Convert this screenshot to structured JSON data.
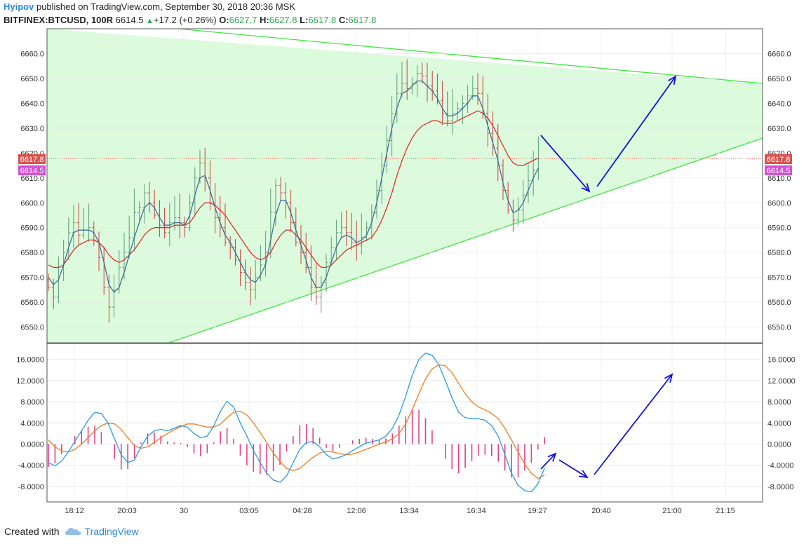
{
  "header": {
    "author": "Hyipov",
    "published_text": "published on TradingView.com, September 30, 2018 20:36 MSK",
    "symbol": "BITFINEX:BTCUSD, 100R",
    "last": "6614.5",
    "change_arrow": "▲",
    "change": "+17.2 (+0.26%)",
    "o_label": "O:",
    "o_value": "6627.7",
    "h_label": "H:",
    "h_value": "6627.8",
    "l_label": "L:",
    "l_value": "6617.8",
    "c_label": "C:",
    "c_value": "6617.8"
  },
  "footer": {
    "created_with": "Created with",
    "brand": "TradingView",
    "logo_icon": "tradingview-cloud-icon"
  },
  "colors": {
    "triangle_fill": "#dcfadc",
    "triangle_line": "#3ee63e",
    "candle_up": "#5c9e77",
    "candle_down": "#c9413d",
    "ma_fast": "#3d6f9c",
    "ma_slow": "#e03030",
    "arrow": "#1212d9",
    "price_line": "#d9534f",
    "macd_line": "#2b9ae9",
    "signal_line": "#f07b1d",
    "histogram": "#e23f88",
    "last_price_label": "#d9534f",
    "close_label": "#d64fd6"
  },
  "chart_data": [
    {
      "type": "candlestick",
      "title": "BITFINEX:BTCUSD, 100R",
      "xlabel": "",
      "ylabel": "",
      "ylim": [
        6545,
        6665
      ],
      "yticks": [
        6550.0,
        6560.0,
        6570.0,
        6580.0,
        6590.0,
        6600.0,
        6610.0,
        6620.0,
        6630.0,
        6640.0,
        6650.0,
        6660.0
      ],
      "ytick_labels": [
        "6550.0",
        "6560.0",
        "6570.0",
        "6580.0",
        "6590.0",
        "6600.0",
        "6610.0",
        "6620.0",
        "6630.0",
        "6640.0",
        "6650.0",
        "6660.0"
      ],
      "xtick_labels": [
        "18:12",
        "20:03",
        "30",
        "03:05",
        "04:28",
        "12:06",
        "13:34",
        "16:34",
        "19:27",
        "20:40",
        "21:00",
        "21:15"
      ],
      "price_labels": [
        "6617.8",
        "6614.5"
      ],
      "annotations": [
        "triangle pattern: upper trendline falling from ~6669 to ~6648, lower trendline rising from ~6533 to ~6626",
        "forecast arrows: drop to ~6604 then rise to ~6651"
      ],
      "close_series": [
        6566,
        6562,
        6574,
        6580,
        6588,
        6592,
        6587,
        6589,
        6590,
        6585,
        6578,
        6566,
        6558,
        6565,
        6574,
        6580,
        6586,
        6596,
        6598,
        6604,
        6600,
        6595,
        6591,
        6588,
        6592,
        6594,
        6592,
        6590,
        6600,
        6610,
        6616,
        6610,
        6600,
        6594,
        6590,
        6584,
        6582,
        6577,
        6572,
        6568,
        6565,
        6570,
        6575,
        6580,
        6596,
        6607,
        6604,
        6600,
        6592,
        6584,
        6580,
        6574,
        6566,
        6562,
        6568,
        6576,
        6582,
        6588,
        6590,
        6588,
        6584,
        6583,
        6586,
        6590,
        6596,
        6605,
        6615,
        6625,
        6636,
        6644,
        6648,
        6646,
        6648,
        6652,
        6651,
        6647,
        6645,
        6641,
        6636,
        6633,
        6636,
        6638,
        6640,
        6643,
        6646,
        6644,
        6636,
        6628,
        6622,
        6615,
        6605,
        6597,
        6593,
        6597,
        6603,
        6609,
        6613,
        6617.8
      ],
      "ma_fast_series": [
        6570,
        6567,
        6569,
        6575,
        6582,
        6588,
        6589,
        6589,
        6589,
        6588,
        6584,
        6576,
        6567,
        6564,
        6566,
        6572,
        6579,
        6586,
        6592,
        6598,
        6600,
        6598,
        6594,
        6591,
        6591,
        6592,
        6592,
        6591,
        6595,
        6603,
        6610,
        6611,
        6605,
        6598,
        6592,
        6587,
        6584,
        6580,
        6576,
        6572,
        6569,
        6568,
        6571,
        6575,
        6585,
        6595,
        6601,
        6601,
        6596,
        6589,
        6583,
        6577,
        6570,
        6566,
        6566,
        6570,
        6576,
        6582,
        6586,
        6587,
        6586,
        6584,
        6585,
        6587,
        6592,
        6600,
        6610,
        6620,
        6630,
        6638,
        6644,
        6645,
        6647,
        6649,
        6649,
        6647,
        6645,
        6642,
        6638,
        6635,
        6635,
        6636,
        6638,
        6640,
        6643,
        6643,
        6638,
        6631,
        6624,
        6617,
        6608,
        6601,
        6596,
        6597,
        6600,
        6605,
        6610,
        6614
      ],
      "ma_slow_series": [
        6575,
        6574,
        6574,
        6575,
        6578,
        6581,
        6583,
        6584,
        6585,
        6585,
        6584,
        6582,
        6579,
        6577,
        6576,
        6577,
        6579,
        6581,
        6584,
        6587,
        6589,
        6590,
        6590,
        6590,
        6590,
        6591,
        6591,
        6591,
        6592,
        6595,
        6598,
        6600,
        6600,
        6599,
        6597,
        6595,
        6592,
        6589,
        6586,
        6583,
        6580,
        6578,
        6577,
        6578,
        6580,
        6584,
        6587,
        6589,
        6589,
        6587,
        6585,
        6582,
        6579,
        6576,
        6574,
        6574,
        6575,
        6577,
        6579,
        6581,
        6582,
        6583,
        6584,
        6585,
        6586,
        6589,
        6593,
        6598,
        6604,
        6611,
        6617,
        6622,
        6626,
        6629,
        6631,
        6632,
        6633,
        6633,
        6632,
        6632,
        6632,
        6633,
        6634,
        6635,
        6636,
        6637,
        6636,
        6634,
        6631,
        6627,
        6623,
        6619,
        6616,
        6615,
        6615,
        6616,
        6617,
        6618
      ]
    },
    {
      "type": "line",
      "title": "",
      "xlabel": "",
      "ylabel": "",
      "ylim": [
        -10.5,
        18.5
      ],
      "yticks": [
        -8,
        -4,
        0,
        4,
        8,
        12,
        16
      ],
      "ytick_labels": [
        "-8.0000",
        "-4.0000",
        "0.0000",
        "4.0000",
        "8.0000",
        "12.0000",
        "16.0000"
      ],
      "series": [
        {
          "values": [
            -3.5,
            -4.1,
            -3.2,
            -1.5,
            0.5,
            2.5,
            4.5,
            6.0,
            5.8,
            4.0,
            1.0,
            -2.0,
            -3.5,
            -3.0,
            -0.5,
            1.5,
            2.5,
            2.8,
            2.5,
            3.0,
            3.5,
            3.2,
            2.0,
            1.2,
            1.5,
            3.5,
            6.2,
            8.1,
            7.0,
            4.0,
            1.5,
            -1.2,
            -3.5,
            -5.5,
            -6.8,
            -7.2,
            -6.0,
            -3.5,
            -1.0,
            0.3,
            0.5,
            -0.5,
            -2.0,
            -2.8,
            -2.5,
            -2.0,
            -1.2,
            -0.5,
            0.2,
            0.5,
            0.8,
            1.5,
            3.0,
            5.5,
            9.0,
            13.0,
            16.0,
            17.2,
            16.8,
            15.0,
            12.0,
            8.8,
            6.0,
            5.0,
            4.8,
            4.8,
            4.5,
            3.5,
            1.5,
            -2.0,
            -5.5,
            -7.8,
            -8.8,
            -9.0,
            -7.5,
            -4.5
          ]
        },
        {
          "values": [
            0.8,
            -0.5,
            -1.3,
            -1.5,
            -1.0,
            0.0,
            1.2,
            2.5,
            3.5,
            4.0,
            3.8,
            2.8,
            1.2,
            -0.3,
            -0.8,
            -0.5,
            0.3,
            1.2,
            2.0,
            2.7,
            3.3,
            3.8,
            3.8,
            3.5,
            3.2,
            3.2,
            3.8,
            5.0,
            6.0,
            6.2,
            5.5,
            4.0,
            2.2,
            0.3,
            -1.7,
            -3.3,
            -4.6,
            -5.0,
            -4.6,
            -3.5,
            -2.5,
            -1.7,
            -1.3,
            -1.5,
            -1.8,
            -2.0,
            -1.9,
            -1.5,
            -1.0,
            -0.5,
            0.0,
            0.4,
            1.0,
            2.0,
            3.8,
            6.5,
            9.5,
            12.3,
            14.2,
            15.0,
            14.8,
            13.5,
            11.5,
            9.5,
            8.0,
            7.0,
            6.5,
            5.8,
            4.8,
            3.0,
            0.8,
            -1.5,
            -3.8,
            -5.5,
            -6.5,
            -5.8
          ]
        },
        {
          "values": [
            -4.3,
            -3.6,
            -1.9,
            0.0,
            1.5,
            2.5,
            3.3,
            3.5,
            2.3,
            0.0,
            -2.8,
            -4.8,
            -4.7,
            -2.7,
            0.3,
            2.0,
            2.2,
            1.6,
            0.5,
            0.3,
            0.2,
            -0.6,
            -1.8,
            -2.3,
            -1.7,
            0.3,
            2.4,
            3.1,
            1.0,
            -2.2,
            -4.0,
            -5.2,
            -5.7,
            -5.8,
            -5.1,
            -3.9,
            -1.4,
            1.5,
            3.6,
            3.8,
            3.0,
            1.2,
            -0.7,
            -1.3,
            -0.7,
            0.0,
            0.7,
            1.0,
            1.2,
            1.0,
            0.8,
            1.1,
            2.0,
            3.5,
            5.2,
            6.5,
            6.5,
            4.9,
            2.6,
            0.0,
            -2.8,
            -4.7,
            -5.5,
            -4.5,
            -3.2,
            -2.2,
            -2.0,
            -2.3,
            -3.3,
            -5.0,
            -6.3,
            -6.3,
            -5.0,
            -3.5,
            -1.0,
            1.3
          ]
        }
      ]
    }
  ]
}
